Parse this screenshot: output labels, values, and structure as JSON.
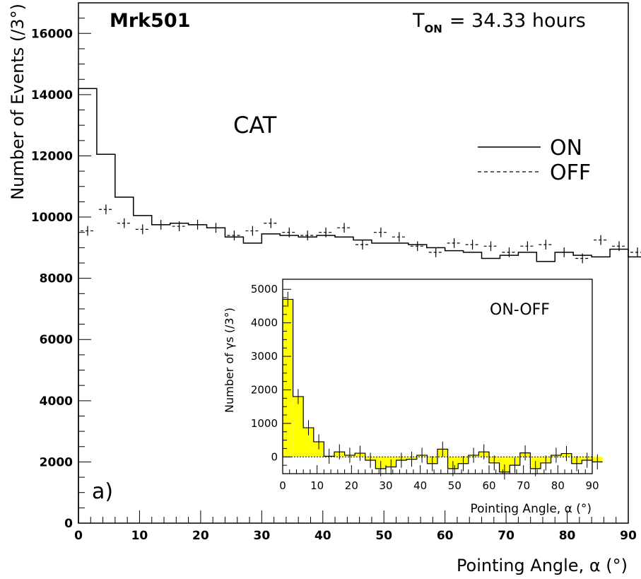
{
  "chart_data": [
    {
      "type": "step",
      "title": "Mrk501",
      "annotation": "T",
      "annotation_sub": "ON",
      "annotation_rest": "= 34.33 hours",
      "label_text": "CAT",
      "panel_label": "a)",
      "xlabel": "Pointing Angle, α (°)",
      "ylabel": "Number of Events (/3°)",
      "xlim": [
        0,
        90
      ],
      "ylim": [
        0,
        17000
      ],
      "xticks": [
        "0",
        "10",
        "20",
        "30",
        "40",
        "50",
        "60",
        "70",
        "80",
        "90"
      ],
      "yticks": [
        "0",
        "2000",
        "4000",
        "6000",
        "8000",
        "10000",
        "12000",
        "14000",
        "16000"
      ],
      "bin_width": 3,
      "legend": {
        "placement": "top-right"
      },
      "series": [
        {
          "name": "ON",
          "style": "solid",
          "values": [
            14200,
            12050,
            10650,
            10050,
            9750,
            9800,
            9750,
            9650,
            9350,
            9150,
            9450,
            9400,
            9350,
            9400,
            9350,
            9250,
            9150,
            9150,
            9100,
            9000,
            8900,
            8850,
            8650,
            8750,
            8850,
            8550,
            8850,
            8750,
            8700,
            8950,
            8700
          ]
        },
        {
          "name": "OFF",
          "style": "dashed",
          "values": [
            9550,
            10250,
            9800,
            9600,
            9750,
            9700,
            9750,
            9650,
            9400,
            9550,
            9800,
            9500,
            9400,
            9500,
            9650,
            9100,
            9500,
            9350,
            9050,
            8850,
            9150,
            9100,
            9050,
            8850,
            9050,
            9100,
            8850,
            8650,
            9250,
            9050,
            8850
          ],
          "errors": 160
        }
      ]
    },
    {
      "type": "bar",
      "title": "ON-OFF",
      "xlabel": "Pointing Angle, α (°)",
      "ylabel": "Number of γs (/3°)",
      "xlim": [
        0,
        90
      ],
      "ylim": [
        -500,
        5300
      ],
      "xticks": [
        "0",
        "10",
        "20",
        "30",
        "40",
        "50",
        "60",
        "70",
        "80",
        "90"
      ],
      "yticks": [
        "0",
        "1000",
        "2000",
        "3000",
        "4000",
        "5000"
      ],
      "bin_width": 3,
      "fill_color": "#ffff00",
      "series": [
        {
          "name": "ON-OFF",
          "values": [
            4700,
            1800,
            870,
            450,
            20,
            150,
            50,
            110,
            -100,
            -350,
            -300,
            -100,
            -70,
            50,
            -200,
            230,
            -350,
            -200,
            50,
            150,
            -180,
            -450,
            -250,
            120,
            -350,
            -180,
            50,
            100,
            -200,
            -100,
            -150
          ],
          "errors": 225
        }
      ]
    }
  ]
}
